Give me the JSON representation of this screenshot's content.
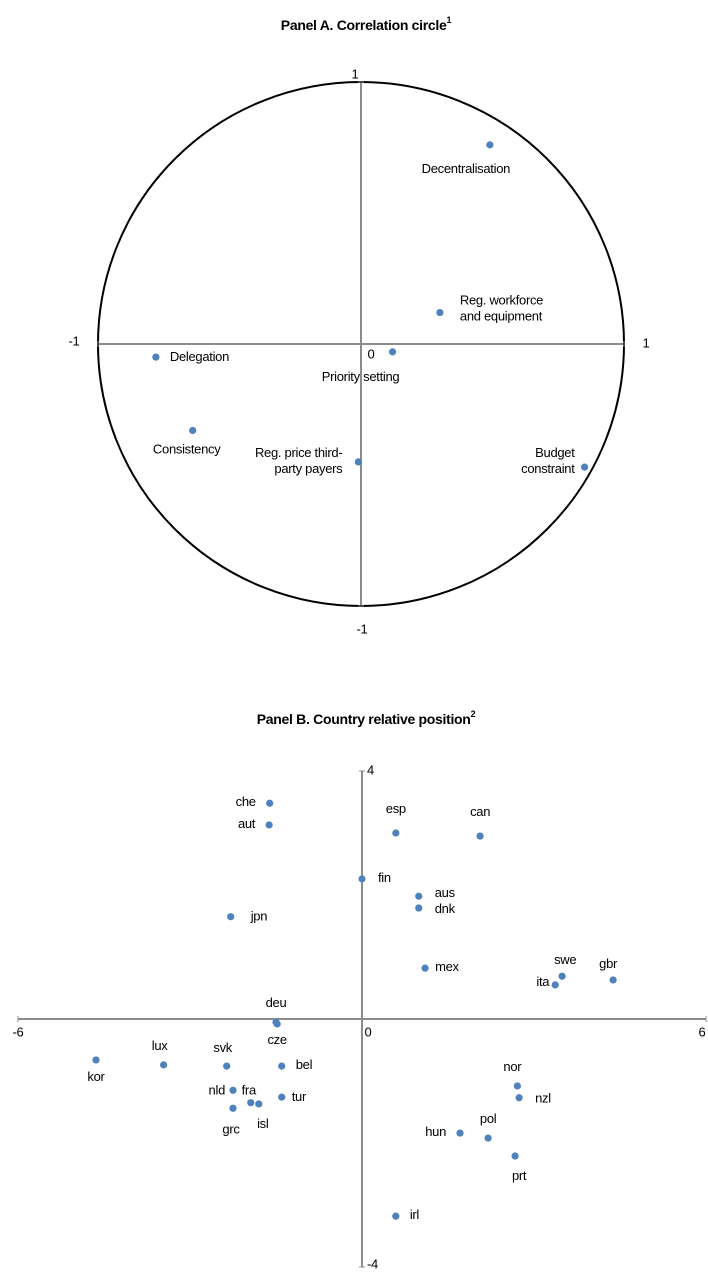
{
  "chart_data": [
    {
      "type": "scatter",
      "title": "Panel A. Correlation circle",
      "title_sup": "1",
      "unit_circle": true,
      "xlim": [
        -1,
        1
      ],
      "ylim": [
        -1,
        1
      ],
      "xticks": [
        -1,
        0,
        1
      ],
      "yticks": [
        -1,
        1
      ],
      "color": "#4f81bd",
      "labels": [
        [
          "Decentralisation"
        ],
        [
          "Reg. workforce",
          "and equipment"
        ],
        [
          "Priority setting"
        ],
        [
          "Delegation"
        ],
        [
          "Consistency"
        ],
        [
          "Reg. price third-",
          "party payers"
        ],
        [
          "Budget",
          "constraint"
        ]
      ],
      "x": [
        0.49,
        0.3,
        0.12,
        -0.78,
        -0.64,
        -0.01,
        0.85
      ],
      "values": [
        0.76,
        0.12,
        -0.03,
        -0.05,
        -0.33,
        -0.45,
        -0.47
      ]
    },
    {
      "type": "scatter",
      "title": "Panel B. Country relative position",
      "title_sup": "2",
      "unit_circle": false,
      "xlim": [
        -6,
        6
      ],
      "ylim": [
        -4,
        4
      ],
      "xticks": [
        -6,
        0,
        6
      ],
      "yticks": [
        4,
        -4
      ],
      "color": "#4f81bd",
      "labels": [
        [
          "che"
        ],
        [
          "aut"
        ],
        [
          "esp"
        ],
        [
          "can"
        ],
        [
          "fin"
        ],
        [
          "aus"
        ],
        [
          "dnk"
        ],
        [
          "jpn"
        ],
        [
          "mex"
        ],
        [
          "swe"
        ],
        [
          "gbr"
        ],
        [
          "ita"
        ],
        [
          "deu"
        ],
        [
          "cze"
        ],
        [
          "kor"
        ],
        [
          "lux"
        ],
        [
          "svk"
        ],
        [
          "bel"
        ],
        [
          "nld"
        ],
        [
          "fra"
        ],
        [
          "isl"
        ],
        [
          "grc"
        ],
        [
          "tur"
        ],
        [
          "nor"
        ],
        [
          "nzl"
        ],
        [
          "hun"
        ],
        [
          "pol"
        ],
        [
          "prt"
        ],
        [
          "irl"
        ]
      ],
      "x": [
        -1.61,
        -1.62,
        0.59,
        2.06,
        0.0,
        0.99,
        0.99,
        -2.29,
        1.1,
        3.49,
        4.38,
        3.37,
        -1.5,
        -1.48,
        -4.64,
        -3.46,
        -2.36,
        -1.4,
        -2.25,
        -1.94,
        -1.8,
        -2.25,
        -1.4,
        2.71,
        2.74,
        1.71,
        2.2,
        2.67,
        0.59
      ],
      "values": [
        3.48,
        3.13,
        3.0,
        2.95,
        2.26,
        1.98,
        1.79,
        1.65,
        0.82,
        0.69,
        0.63,
        0.55,
        -0.05,
        -0.08,
        -0.66,
        -0.74,
        -0.76,
        -0.76,
        -1.15,
        -1.35,
        -1.37,
        -1.44,
        -1.26,
        -1.08,
        -1.27,
        -1.84,
        -1.92,
        -2.21,
        -3.18
      ]
    }
  ]
}
